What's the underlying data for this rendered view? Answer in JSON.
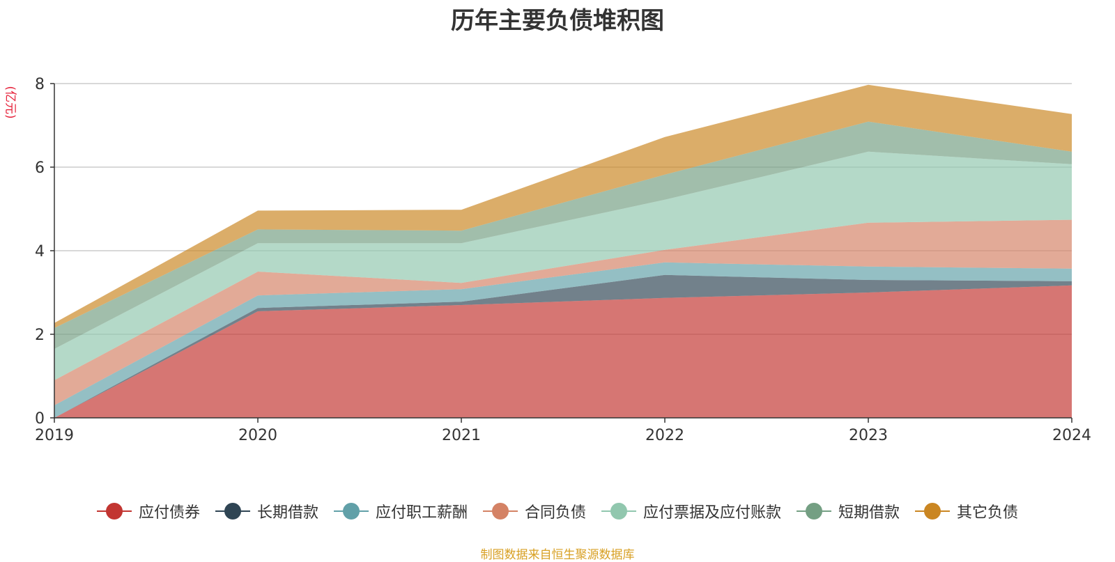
{
  "title": "历年主要负债堆积图",
  "footer": "制图数据来自恒生聚源数据库",
  "chart_data": {
    "type": "area",
    "stacked": true,
    "title": "历年主要负债堆积图",
    "ylabel": "(亿元)",
    "xlabel": "",
    "x": [
      "2019",
      "2020",
      "2021",
      "2022",
      "2023",
      "2024"
    ],
    "ylim": [
      0,
      8
    ],
    "yticks": [
      0,
      2,
      4,
      6,
      8
    ],
    "grid": true,
    "legend_position": "bottom",
    "series": [
      {
        "name": "应付债券",
        "color": "#c23531",
        "values": [
          0,
          2.55,
          2.7,
          2.87,
          3.0,
          3.17
        ]
      },
      {
        "name": "长期借款",
        "color": "#2f4554",
        "values": [
          0,
          0.08,
          0.08,
          0.55,
          0.3,
          0.1
        ]
      },
      {
        "name": "应付职工薪酬",
        "color": "#61a0a8",
        "values": [
          0.3,
          0.3,
          0.3,
          0.3,
          0.32,
          0.3
        ]
      },
      {
        "name": "合同负债",
        "color": "#d48265",
        "values": [
          0.6,
          0.57,
          0.15,
          0.3,
          1.05,
          1.17
        ]
      },
      {
        "name": "应付票据及应付账款",
        "color": "#91c7ae",
        "values": [
          0.75,
          0.68,
          0.95,
          1.2,
          1.7,
          1.33
        ]
      },
      {
        "name": "短期借款",
        "color": "#749f83",
        "values": [
          0.5,
          0.33,
          0.3,
          0.6,
          0.72,
          0.3
        ]
      },
      {
        "name": "其它负债",
        "color": "#ca8622",
        "values": [
          0.12,
          0.45,
          0.5,
          0.9,
          0.88,
          0.9
        ]
      }
    ]
  }
}
